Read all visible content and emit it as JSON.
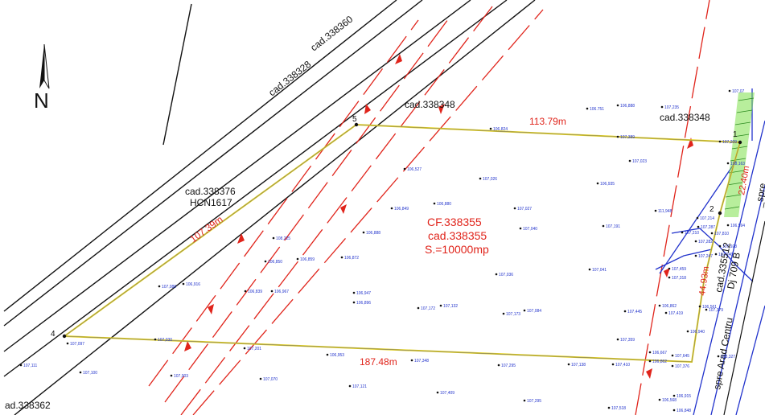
{
  "north_arrow": {
    "letter": "N"
  },
  "parcels": {
    "top_left": [
      "cad.338360",
      "cad.338328"
    ],
    "top_right": "cad.338348",
    "top_right_far": "cad.338348",
    "left": [
      "cad.338376",
      "HCN1617"
    ],
    "main": [
      "CF.338355",
      "cad.338355",
      "S.=10000mp"
    ],
    "road": [
      "cad.335512",
      "Dj 709 B"
    ],
    "bottom_left": "ad.338362"
  },
  "road_text": {
    "spre_arad": "spre Arad Centru",
    "spre_far": "_spre"
  },
  "vertices": [
    "1",
    "2",
    "4",
    "5"
  ],
  "distances": {
    "top": "113.79m",
    "left": "107.39m",
    "bottom": "187.48m",
    "right_lower": "44.93m",
    "right_upper": "22.40m"
  },
  "elevations": [
    "106.751",
    "106,888",
    "107,235",
    "107,07",
    "106,824",
    "107,389",
    "107,209",
    "107,023",
    "108,163",
    "106,527",
    "107,026",
    "106,935",
    "106,880",
    "106,849",
    "107,027",
    "111,948",
    "106,888",
    "107,040",
    "107,214",
    "107,287",
    "106,594",
    "107,191",
    "107,210",
    "107,810",
    "108,225",
    "106,850",
    "106,859",
    "106,872",
    "107,036",
    "107,282",
    "107,928",
    "107,247",
    "107,246",
    "106,916",
    "107,088",
    "106,839",
    "106,967",
    "107,041",
    "107,459",
    "107,318",
    "106,947",
    "106,896",
    "107,172",
    "107,132",
    "107,173",
    "107,084",
    "107,445",
    "106,862",
    "107,419",
    "106,561",
    "107,379",
    "106,940",
    "107,097",
    "107,030",
    "107,201",
    "107,359",
    "106,953",
    "107,348",
    "107,295",
    "107,138",
    "107,410",
    "106,667",
    "106,862",
    "107,645",
    "107,376",
    "108,327",
    "107,111",
    "107,100",
    "107,003",
    "107,070",
    "107,121",
    "107,409",
    "107,295",
    "107,518",
    "106,568",
    "106,915",
    "106,848"
  ]
}
